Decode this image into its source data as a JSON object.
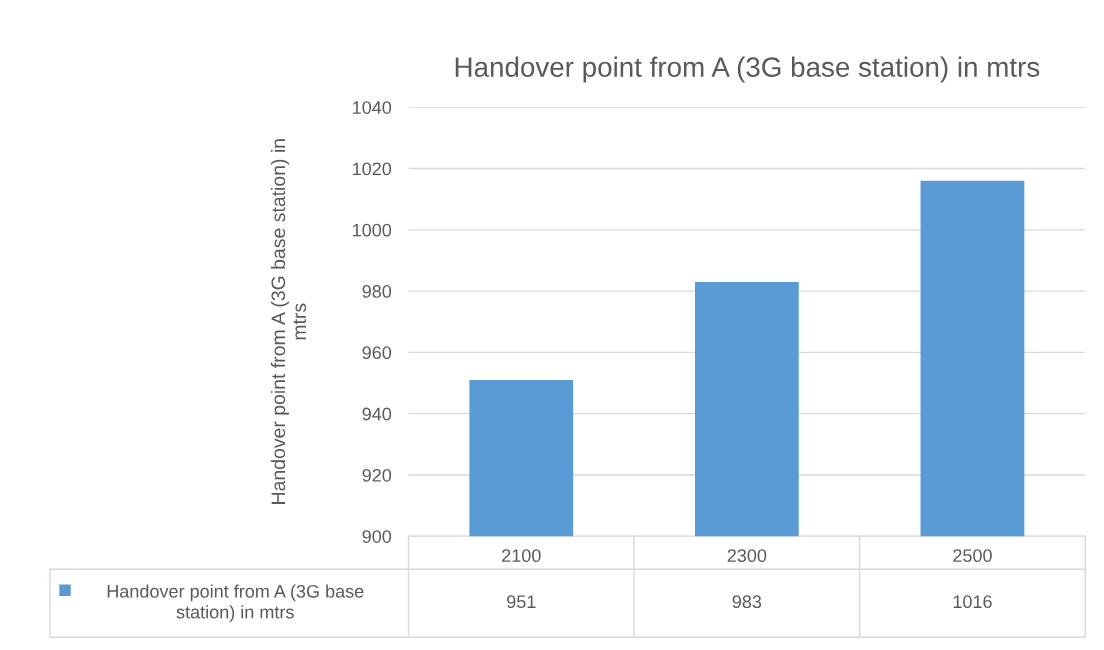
{
  "chart_data": {
    "type": "bar",
    "title": "Handover point from A (3G base station) in mtrs",
    "ylabel": "Handover point from A (3G base station) in mtrs",
    "categories": [
      "2100",
      "2300",
      "2500"
    ],
    "series": [
      {
        "name": "Handover point from A (3G base station) in mtrs",
        "color": "#5b9bd5",
        "values": [
          951,
          983,
          1016
        ]
      }
    ],
    "ylim": [
      900,
      1040
    ],
    "yticks": [
      900,
      920,
      940,
      960,
      980,
      1000,
      1020,
      1040
    ],
    "grid": "y",
    "data_labels": true,
    "legend": "bottom"
  }
}
